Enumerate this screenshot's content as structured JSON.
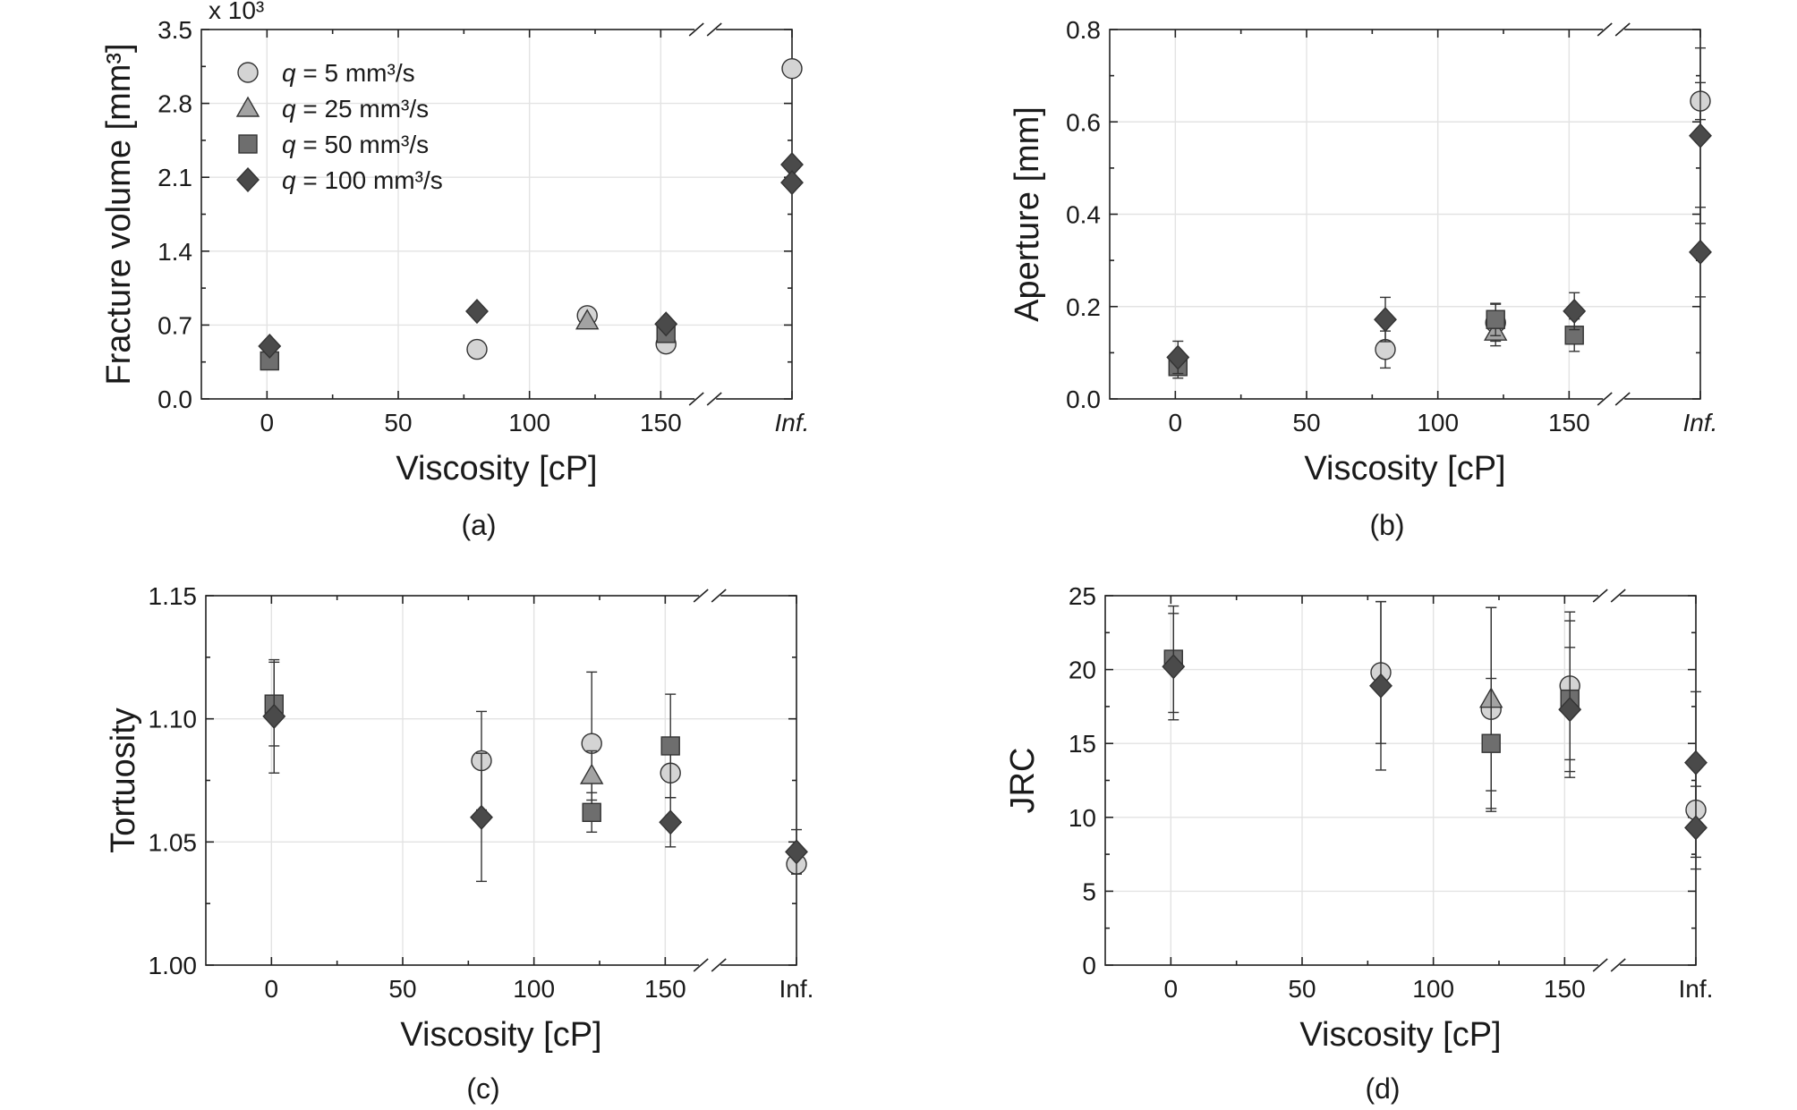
{
  "chart_data": [
    {
      "type": "scatter",
      "panel_label": "(a)",
      "xlabel": "Viscosity [cP]",
      "ylabel": "Fracture volume [mm³]",
      "y_multiplier": "x 10³",
      "ylim": [
        0,
        3.5
      ],
      "yticks": [
        "0.0",
        "0.7",
        "1.4",
        "2.1",
        "2.8",
        "3.5"
      ],
      "xticks": [
        "0",
        "50",
        "100",
        "150",
        "Inf."
      ],
      "x_break": true,
      "grid": true,
      "legend": "top-left",
      "series": [
        {
          "name": "q = 5 mm³/s",
          "marker": "circle",
          "color": "#d4d4d4",
          "points": [
            {
              "x": 80,
              "y": 0.47
            },
            {
              "x": 122,
              "y": 0.79
            },
            {
              "x": 152,
              "y": 0.52
            },
            {
              "x": "Inf.",
              "y": 3.13
            }
          ]
        },
        {
          "name": "q = 25 mm³/s",
          "marker": "triangle",
          "color": "#a3a3a3",
          "points": [
            {
              "x": 122,
              "y": 0.74
            }
          ]
        },
        {
          "name": "q = 50 mm³/s",
          "marker": "square",
          "color": "#6e6e6e",
          "points": [
            {
              "x": 1,
              "y": 0.36
            },
            {
              "x": 152,
              "y": 0.62
            }
          ]
        },
        {
          "name": "q = 100 mm³/s",
          "marker": "diamond",
          "color": "#4a4a4a",
          "points": [
            {
              "x": 1,
              "y": 0.5
            },
            {
              "x": 80,
              "y": 0.83
            },
            {
              "x": 152,
              "y": 0.71
            },
            {
              "x": "Inf.",
              "y": 2.22
            },
            {
              "x": "Inf.",
              "y": 2.05
            }
          ]
        }
      ]
    },
    {
      "type": "scatter",
      "panel_label": "(b)",
      "xlabel": "Viscosity [cP]",
      "ylabel": "Aperture [mm]",
      "ylim": [
        0,
        0.8
      ],
      "yticks": [
        "0.0",
        "0.2",
        "0.4",
        "0.6",
        "0.8"
      ],
      "xticks": [
        "0",
        "50",
        "100",
        "150",
        "Inf."
      ],
      "x_break": true,
      "grid": true,
      "series": [
        {
          "name": "q = 5 mm³/s",
          "marker": "circle",
          "color": "#d4d4d4",
          "points": [
            {
              "x": 80,
              "y": 0.107,
              "err": 0.04
            },
            {
              "x": 122,
              "y": 0.165,
              "err": 0.04
            },
            {
              "x": "Inf.",
              "y": 0.645,
              "err": 0.04
            }
          ]
        },
        {
          "name": "q = 25 mm³/s",
          "marker": "triangle",
          "color": "#a3a3a3",
          "points": [
            {
              "x": 122,
              "y": 0.145,
              "err": 0.03
            }
          ]
        },
        {
          "name": "q = 50 mm³/s",
          "marker": "square",
          "color": "#6e6e6e",
          "points": [
            {
              "x": 1,
              "y": 0.07,
              "err": 0.025
            },
            {
              "x": 122,
              "y": 0.172,
              "err": 0.035
            },
            {
              "x": 152,
              "y": 0.138,
              "err": 0.035
            }
          ]
        },
        {
          "name": "q = 100 mm³/s",
          "marker": "diamond",
          "color": "#4a4a4a",
          "points": [
            {
              "x": 1,
              "y": 0.09,
              "err": 0.035
            },
            {
              "x": 80,
              "y": 0.172,
              "err": 0.048
            },
            {
              "x": 152,
              "y": 0.19,
              "err": 0.04
            },
            {
              "x": "Inf.",
              "y": 0.57,
              "err": 0.19
            },
            {
              "x": "Inf.",
              "y": 0.318,
              "err": 0.097
            }
          ]
        }
      ]
    },
    {
      "type": "scatter",
      "panel_label": "(c)",
      "xlabel": "Viscosity [cP]",
      "ylabel": "Tortuosity",
      "ylim": [
        1.0,
        1.15
      ],
      "yticks": [
        "1.00",
        "1.05",
        "1.10",
        "1.15"
      ],
      "xticks": [
        "0",
        "50",
        "100",
        "150",
        "Inf."
      ],
      "x_break": true,
      "grid": true,
      "series": [
        {
          "name": "q = 5 mm³/s",
          "marker": "circle",
          "color": "#d4d4d4",
          "points": [
            {
              "x": 80,
              "y": 1.083,
              "err": 0.02
            },
            {
              "x": 122,
              "y": 1.09,
              "err": 0.029
            },
            {
              "x": 152,
              "y": 1.078,
              "err": 0.01
            },
            {
              "x": "Inf.",
              "y": 1.041,
              "err": 0.004
            }
          ]
        },
        {
          "name": "q = 25 mm³/s",
          "marker": "triangle",
          "color": "#a3a3a3",
          "points": [
            {
              "x": 122,
              "y": 1.077,
              "err": 0.01
            }
          ]
        },
        {
          "name": "q = 50 mm³/s",
          "marker": "square",
          "color": "#6e6e6e",
          "points": [
            {
              "x": 1,
              "y": 1.106,
              "err": 0.017
            },
            {
              "x": 122,
              "y": 1.062,
              "err": 0.008
            },
            {
              "x": 152,
              "y": 1.089,
              "err": 0.021
            }
          ]
        },
        {
          "name": "q = 100 mm³/s",
          "marker": "diamond",
          "color": "#4a4a4a",
          "points": [
            {
              "x": 1,
              "y": 1.101,
              "err": 0.023
            },
            {
              "x": 80,
              "y": 1.06,
              "err": 0.026
            },
            {
              "x": 152,
              "y": 1.058,
              "err": 0.01
            },
            {
              "x": "Inf.",
              "y": 1.046,
              "err": 0.009
            }
          ]
        }
      ]
    },
    {
      "type": "scatter",
      "panel_label": "(d)",
      "xlabel": "Viscosity [cP]",
      "ylabel": "JRC",
      "ylim": [
        0,
        25
      ],
      "yticks": [
        "0",
        "5",
        "10",
        "15",
        "20",
        "25"
      ],
      "xticks": [
        "0",
        "50",
        "100",
        "150",
        "Inf."
      ],
      "x_break": true,
      "grid": true,
      "series": [
        {
          "name": "q = 5 mm³/s",
          "marker": "circle",
          "color": "#d4d4d4",
          "points": [
            {
              "x": 80,
              "y": 19.8,
              "err": 4.8
            },
            {
              "x": 122,
              "y": 17.3,
              "err": 6.9
            },
            {
              "x": 152,
              "y": 18.9,
              "err": 5.0
            },
            {
              "x": "Inf.",
              "y": 10.5,
              "err": 3.2
            }
          ]
        },
        {
          "name": "q = 25 mm³/s",
          "marker": "triangle",
          "color": "#a3a3a3",
          "points": [
            {
              "x": 122,
              "y": 18.0,
              "err": 6.2
            }
          ]
        },
        {
          "name": "q = 50 mm³/s",
          "marker": "square",
          "color": "#6e6e6e",
          "points": [
            {
              "x": 1,
              "y": 20.7,
              "err": 3.6
            },
            {
              "x": 122,
              "y": 15.0,
              "err": 4.4
            },
            {
              "x": 152,
              "y": 18.0,
              "err": 5.3
            }
          ]
        },
        {
          "name": "q = 100 mm³/s",
          "marker": "diamond",
          "color": "#4a4a4a",
          "points": [
            {
              "x": 1,
              "y": 20.2,
              "err": 3.6
            },
            {
              "x": 80,
              "y": 18.9,
              "err": 5.7
            },
            {
              "x": 152,
              "y": 17.3,
              "err": 4.2
            },
            {
              "x": "Inf.",
              "y": 13.7,
              "err": 4.8
            },
            {
              "x": "Inf.",
              "y": 9.3,
              "err": 2.8
            }
          ]
        }
      ]
    }
  ]
}
